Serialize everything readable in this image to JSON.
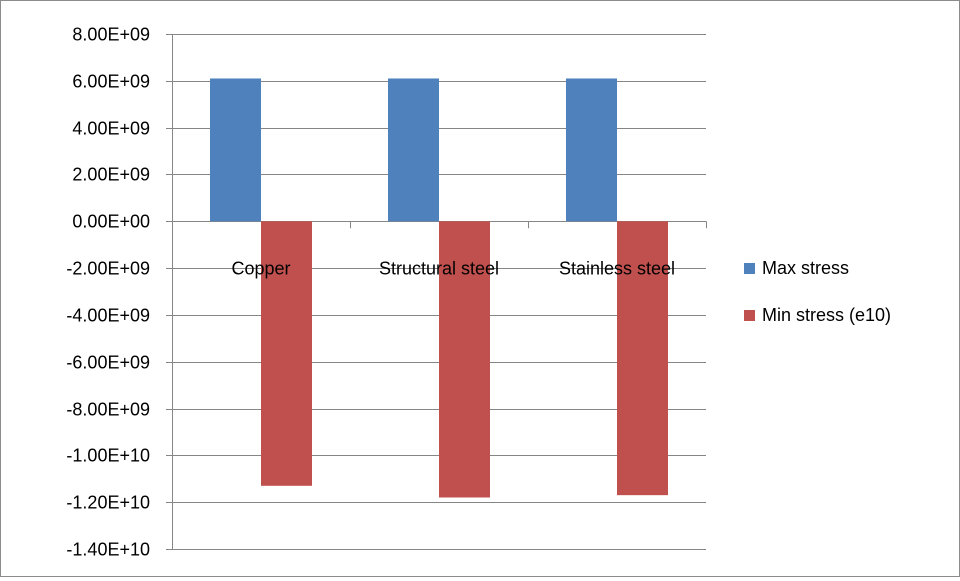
{
  "chart_data": {
    "type": "bar",
    "title": "",
    "xlabel": "",
    "ylabel": "",
    "categories": [
      "Copper",
      "Structural steel",
      "Stainless steel"
    ],
    "series": [
      {
        "name": "Max stress",
        "color": "#4f81bd",
        "values": [
          6100000000.0,
          6100000000.0,
          6100000000.0
        ]
      },
      {
        "name": "Min stress (e10)",
        "color": "#c0504d",
        "values": [
          -11300000000.0,
          -11800000000.0,
          -11700000000.0
        ]
      }
    ],
    "ylim": [
      -14000000000.0,
      8000000000.0
    ],
    "ytick_step": 2000000000.0,
    "yticks": [
      "8.00E+09",
      "6.00E+09",
      "4.00E+09",
      "2.00E+09",
      "0.00E+00",
      "-2.00E+09",
      "-4.00E+09",
      "-6.00E+09",
      "-8.00E+09",
      "-1.00E+10",
      "-1.20E+10",
      "-1.40E+10"
    ],
    "grid": true,
    "legend_position": "right",
    "gridline_color": "#868686"
  }
}
